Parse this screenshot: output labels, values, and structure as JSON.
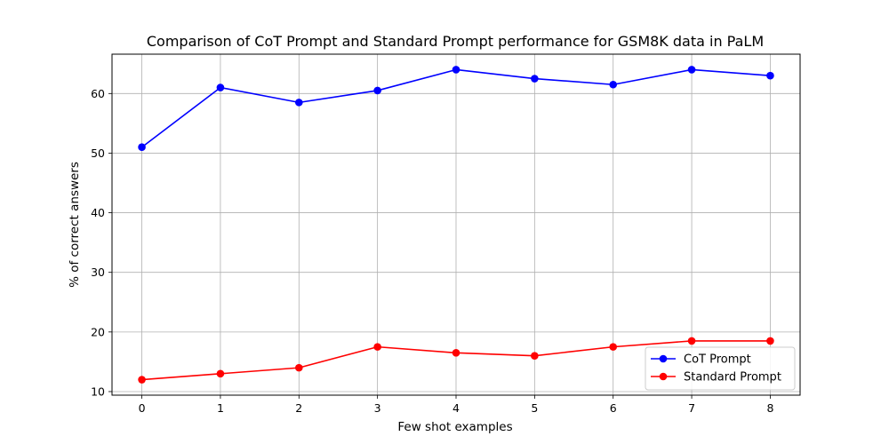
{
  "chart_data": {
    "type": "line",
    "title": "Comparison of CoT Prompt and Standard Prompt performance for GSM8K data in PaLM",
    "xlabel": "Few shot examples",
    "ylabel": "% of correct answers",
    "x": [
      0,
      1,
      2,
      3,
      4,
      5,
      6,
      7,
      8
    ],
    "xlim": [
      -0.38,
      8.38
    ],
    "ylim": [
      9.4,
      66.6
    ],
    "x_ticks": [
      "0",
      "1",
      "2",
      "3",
      "4",
      "5",
      "6",
      "7",
      "8"
    ],
    "y_ticks": [
      10,
      20,
      30,
      40,
      50,
      60
    ],
    "y_tick_labels": [
      "10",
      "20",
      "30",
      "40",
      "50",
      "60"
    ],
    "grid": true,
    "legend_position": "lower-right",
    "series": [
      {
        "name": "CoT Prompt",
        "color": "#0000ff",
        "marker": "circle",
        "values": [
          51,
          61,
          58.5,
          60.5,
          64,
          62.5,
          61.5,
          64,
          63
        ]
      },
      {
        "name": "Standard Prompt",
        "color": "#ff0000",
        "marker": "circle",
        "values": [
          12,
          13,
          14,
          17.5,
          16.5,
          16,
          17.5,
          18.5,
          18.5
        ]
      }
    ]
  }
}
